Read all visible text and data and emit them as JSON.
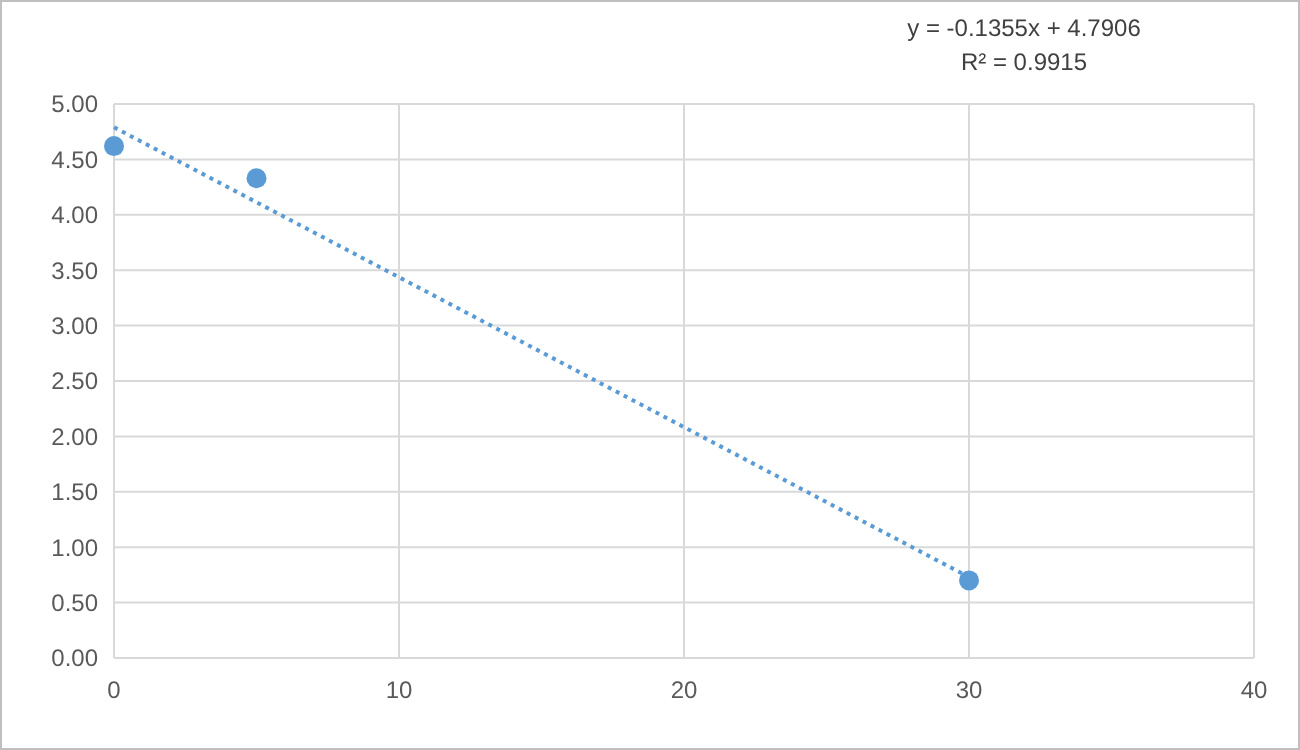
{
  "chart_data": {
    "type": "scatter",
    "xlim": [
      0,
      40
    ],
    "xticks": [
      0,
      10,
      20,
      30,
      40
    ],
    "ylim": [
      0,
      5
    ],
    "yticks": [
      {
        "value": 0,
        "label": "0.00"
      },
      {
        "value": 0.5,
        "label": "0.50"
      },
      {
        "value": 1,
        "label": "1.00"
      },
      {
        "value": 1.5,
        "label": "1.50"
      },
      {
        "value": 2,
        "label": "2.00"
      },
      {
        "value": 2.5,
        "label": "2.50"
      },
      {
        "value": 3,
        "label": "3.00"
      },
      {
        "value": 3.5,
        "label": "3.50"
      },
      {
        "value": 4,
        "label": "4.00"
      },
      {
        "value": 4.5,
        "label": "4.50"
      },
      {
        "value": 5,
        "label": "5.00"
      }
    ],
    "grid": true,
    "series": [
      {
        "color": "#5b9bd5",
        "x": [
          0,
          5,
          30
        ],
        "values": [
          4.62,
          4.33,
          0.7
        ],
        "marker": "circle"
      },
      {
        "type": "line",
        "color": "#5b9bd5",
        "x": [
          0,
          30
        ],
        "values": [
          4.79,
          0.73
        ],
        "line_style": "dotted",
        "marker": "none"
      }
    ],
    "annotations": [
      "y = -0.1355x + 4.7906",
      "R² = 0.9915"
    ]
  }
}
